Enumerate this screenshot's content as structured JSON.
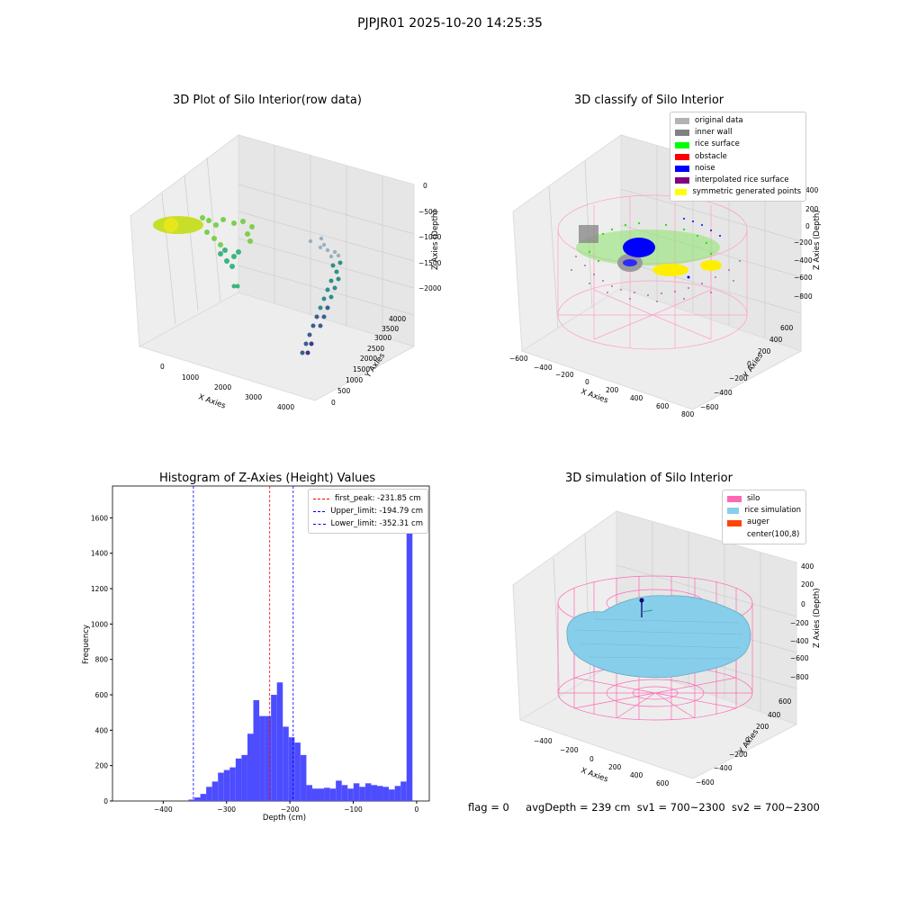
{
  "suptitle": "PJPJR01 2025-10-20 14:25:35",
  "bottom_stats": {
    "flag": "flag = 0",
    "avgDepth": "avgDepth = 239 cm",
    "sv1": "sv1 = 700~2300",
    "sv2": "sv2 = 700~2300"
  },
  "chart_data": [
    {
      "type": "scatter",
      "title": "3D Plot of Silo Interior(row data)",
      "xlabel": "X Axies",
      "ylabel": "Y Axies",
      "zlabel": "Z Axies (Depth)",
      "x_ticks": [
        "0",
        "1000",
        "2000",
        "3000",
        "4000"
      ],
      "y_ticks": [
        "0",
        "500",
        "1000",
        "1500",
        "2000",
        "2500",
        "3000",
        "3500",
        "4000"
      ],
      "z_ticks": [
        "0",
        "−500",
        "−1000",
        "−1500",
        "−2000"
      ],
      "xlim": [
        -600,
        4500
      ],
      "ylim": [
        0,
        4000
      ],
      "zlim": [
        -2200,
        0
      ],
      "colormap": "viridis",
      "series": [
        {
          "points": [
            [
              -200,
              3800,
              -300
            ],
            [
              0,
              3700,
              -250
            ],
            [
              200,
              3750,
              -350
            ],
            [
              400,
              3600,
              -400
            ],
            [
              600,
              3650,
              -450
            ],
            [
              800,
              3500,
              -600
            ],
            [
              1000,
              3400,
              -700
            ],
            [
              1200,
              3300,
              -900
            ],
            [
              900,
              3450,
              -800
            ],
            [
              700,
              3550,
              -550
            ],
            [
              1100,
              3350,
              -1000
            ],
            [
              1300,
              3250,
              -1200
            ]
          ]
        },
        {
          "points": [
            [
              3800,
              1200,
              -1400
            ],
            [
              3850,
              1150,
              -1500
            ],
            [
              3900,
              1050,
              -1600
            ],
            [
              3950,
              950,
              -1700
            ],
            [
              4000,
              850,
              -1800
            ],
            [
              4050,
              750,
              -1900
            ],
            [
              4100,
              650,
              -2000
            ],
            [
              4150,
              550,
              -2100
            ],
            [
              3750,
              1300,
              -1300
            ],
            [
              3700,
              1400,
              -1200
            ]
          ]
        }
      ],
      "grid": true
    },
    {
      "type": "scatter",
      "title": "3D classify of Silo Interior",
      "xlabel": "X Axies",
      "ylabel": "Y Axies",
      "zlabel": "Z Axies (Depth)",
      "x_ticks": [
        "−600",
        "−400",
        "−200",
        "0",
        "200",
        "400",
        "600",
        "800"
      ],
      "y_ticks": [
        "−600",
        "−400",
        "−200",
        "0",
        "200",
        "400",
        "600"
      ],
      "z_ticks": [
        "−800",
        "−600",
        "−400",
        "−200",
        "0",
        "200",
        "400"
      ],
      "xlim": [
        -650,
        800
      ],
      "ylim": [
        -650,
        650
      ],
      "zlim": [
        -900,
        450
      ],
      "legend": {
        "position": "top-right",
        "entries": [
          {
            "label": "original data",
            "color": "#b3b3b3"
          },
          {
            "label": "inner wall",
            "color": "#808080"
          },
          {
            "label": "rice surface",
            "color": "#00ff00"
          },
          {
            "label": "obstacle",
            "color": "#ff0000"
          },
          {
            "label": "noise",
            "color": "#0000ff"
          },
          {
            "label": "interpolated rice surface",
            "color": "#800080"
          },
          {
            "label": "symmetric generated points",
            "color": "#ffff00"
          }
        ]
      },
      "grid": true
    },
    {
      "type": "bar",
      "title": "Histogram of Z-Axies (Height) Values",
      "xlabel": "Depth (cm)",
      "ylabel": "Frequency",
      "xlim": [
        -480,
        20
      ],
      "ylim": [
        0,
        1780
      ],
      "x_ticks": [
        -400,
        -300,
        -200,
        -100,
        0
      ],
      "x_tick_labels": [
        "−400",
        "−300",
        "−200",
        "−100",
        "0"
      ],
      "y_ticks": [
        0,
        200,
        400,
        600,
        800,
        1000,
        1200,
        1400,
        1600
      ],
      "bin_width": 9.3,
      "bin_start": -360,
      "values": [
        8,
        20,
        40,
        80,
        110,
        160,
        175,
        190,
        240,
        260,
        380,
        570,
        480,
        480,
        600,
        670,
        420,
        360,
        330,
        260,
        90,
        70,
        70,
        75,
        70,
        115,
        90,
        70,
        100,
        80,
        100,
        90,
        85,
        80,
        65,
        85,
        110,
        1700
      ],
      "bar_color": "#4d4dff",
      "vlines": [
        {
          "label": "first_peak: -231.85 cm",
          "x": -231.85,
          "color": "#ff0000"
        },
        {
          "label": "Upper_limit: -194.79 cm",
          "x": -194.79,
          "color": "#0000ff"
        },
        {
          "label": "Lower_limit: -352.31 cm",
          "x": -352.31,
          "color": "#0000ff"
        }
      ],
      "legend": {
        "position": "top-right"
      }
    },
    {
      "type": "scatter",
      "title": "3D simulation of Silo Interior",
      "xlabel": "X Axies",
      "ylabel": "Y Axies",
      "zlabel": "Z Axies (Depth)",
      "x_ticks": [
        "−400",
        "−200",
        "0",
        "200",
        "400",
        "600"
      ],
      "y_ticks": [
        "−600",
        "−400",
        "−200",
        "0",
        "200",
        "400",
        "600"
      ],
      "z_ticks": [
        "−800",
        "−600",
        "−400",
        "−200",
        "0",
        "200",
        "400"
      ],
      "xlim": [
        -600,
        700
      ],
      "ylim": [
        -650,
        650
      ],
      "zlim": [
        -900,
        450
      ],
      "legend": {
        "position": "top-right",
        "entries": [
          {
            "label": "silo",
            "color": "#ff69b4"
          },
          {
            "label": "rice simulation",
            "color": "#87ceeb"
          },
          {
            "label": "auger",
            "color": "#ff4500"
          },
          {
            "label": "center(100,8)",
            "color": "#ffffff"
          }
        ]
      },
      "grid": true
    }
  ]
}
